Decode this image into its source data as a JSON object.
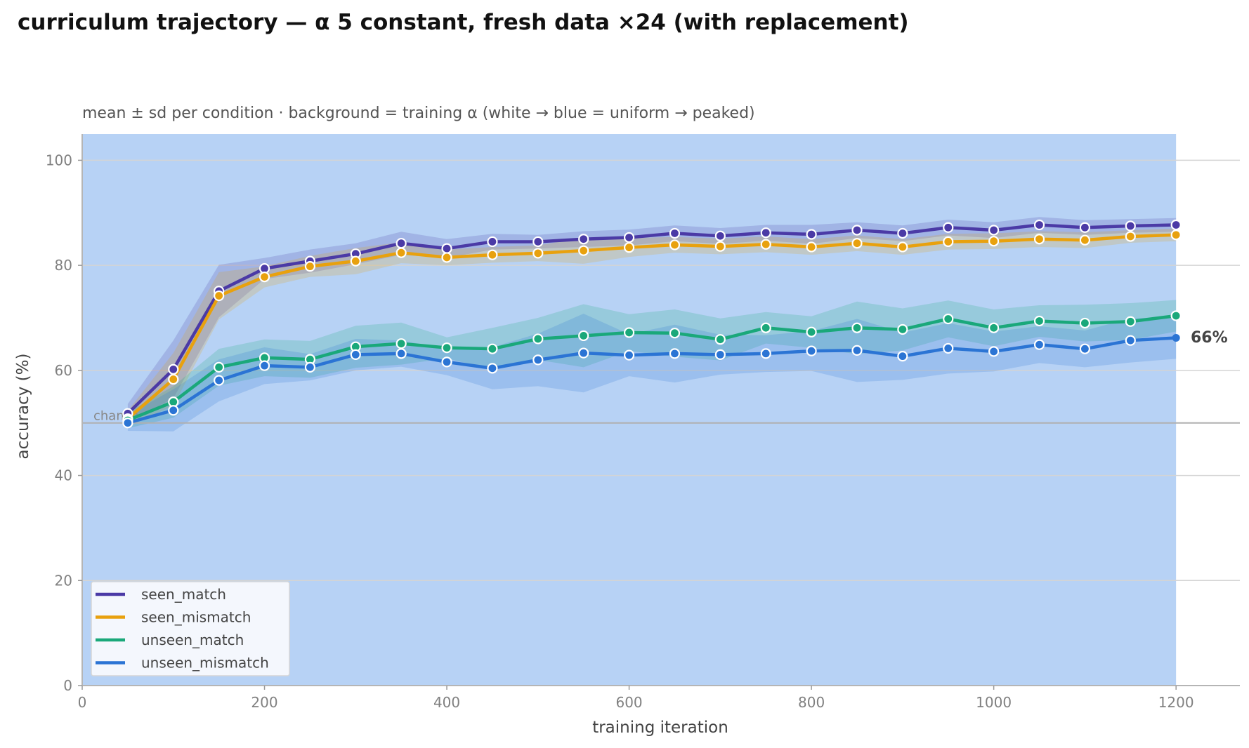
{
  "chart_data": {
    "type": "line",
    "title": "curriculum trajectory — α 5 constant, fresh data ×24 (with replacement)",
    "subtitle": "mean ± sd per condition · background = training α (white → blue = uniform → peaked)",
    "xlabel": "training iteration",
    "ylabel": "accuracy (%)",
    "xlim": [
      0,
      1270
    ],
    "ylim": [
      0,
      105
    ],
    "xticks": [
      0,
      200,
      400,
      600,
      800,
      1000,
      1200
    ],
    "yticks": [
      0,
      20,
      40,
      60,
      80,
      100
    ],
    "grid": "horizontal",
    "legend_position": "lower-left",
    "background_band": {
      "x_start": 0,
      "x_end": 1200,
      "color": "#b7d2f5"
    },
    "chance": {
      "value": 50,
      "label": "chance"
    },
    "end_annotation": {
      "x": 1200,
      "y": 66,
      "text": "66%"
    },
    "x": [
      50,
      100,
      150,
      200,
      250,
      300,
      350,
      400,
      450,
      500,
      550,
      600,
      650,
      700,
      750,
      800,
      850,
      900,
      950,
      1000,
      1050,
      1100,
      1150,
      1200
    ],
    "series": [
      {
        "name": "seen_match",
        "color": "#4b3aa6",
        "values": [
          51.8,
          60.2,
          75.1,
          79.4,
          80.8,
          82.2,
          84.2,
          83.2,
          84.5,
          84.5,
          85.0,
          85.3,
          86.1,
          85.6,
          86.2,
          85.9,
          86.7,
          86.1,
          87.2,
          86.7,
          87.7,
          87.2,
          87.5,
          87.7
        ],
        "sd": [
          1.8,
          5.5,
          5.0,
          2.0,
          2.2,
          2.0,
          2.2,
          1.8,
          1.5,
          1.3,
          1.5,
          1.5,
          1.5,
          1.5,
          1.5,
          1.8,
          1.5,
          1.5,
          1.5,
          1.5,
          1.5,
          1.4,
          1.3,
          1.3
        ]
      },
      {
        "name": "seen_mismatch",
        "color": "#e8a10e",
        "values": [
          50.8,
          58.3,
          74.2,
          77.8,
          79.8,
          80.8,
          82.4,
          81.5,
          82.0,
          82.3,
          82.8,
          83.4,
          83.9,
          83.6,
          84.0,
          83.5,
          84.2,
          83.5,
          84.5,
          84.6,
          85.0,
          84.8,
          85.5,
          85.8
        ],
        "sd": [
          1.5,
          5.0,
          4.5,
          2.0,
          2.0,
          2.5,
          2.0,
          1.5,
          1.5,
          1.5,
          2.5,
          1.8,
          1.5,
          1.5,
          1.5,
          1.5,
          1.5,
          1.5,
          1.5,
          1.5,
          1.5,
          1.5,
          1.2,
          1.2
        ]
      },
      {
        "name": "unseen_match",
        "color": "#1aa87a",
        "values": [
          50.5,
          54.0,
          60.6,
          62.4,
          62.1,
          64.5,
          65.1,
          64.3,
          64.1,
          66.0,
          66.6,
          67.2,
          67.1,
          65.9,
          68.1,
          67.3,
          68.1,
          67.8,
          69.8,
          68.1,
          69.4,
          69.0,
          69.3,
          70.4
        ],
        "sd": [
          1.5,
          3.0,
          3.5,
          3.5,
          3.5,
          4.0,
          4.0,
          2.0,
          4.0,
          4.0,
          6.0,
          3.5,
          4.5,
          4.0,
          3.0,
          3.0,
          5.0,
          4.0,
          3.5,
          3.5,
          3.0,
          3.5,
          3.5,
          3.0
        ]
      },
      {
        "name": "unseen_mismatch",
        "color": "#2b74d4",
        "values": [
          50.0,
          52.4,
          58.1,
          60.9,
          60.6,
          63.0,
          63.2,
          61.6,
          60.4,
          62.0,
          63.3,
          62.9,
          63.2,
          63.0,
          63.2,
          63.7,
          63.8,
          62.7,
          64.2,
          63.6,
          64.9,
          64.1,
          65.7,
          66.2
        ],
        "sd": [
          1.5,
          4.0,
          4.0,
          3.5,
          2.5,
          3.0,
          2.5,
          2.5,
          4.0,
          5.0,
          7.5,
          4.0,
          5.5,
          3.8,
          3.5,
          3.8,
          6.0,
          4.5,
          4.8,
          3.8,
          3.5,
          3.5,
          4.2,
          4.0
        ]
      }
    ]
  }
}
